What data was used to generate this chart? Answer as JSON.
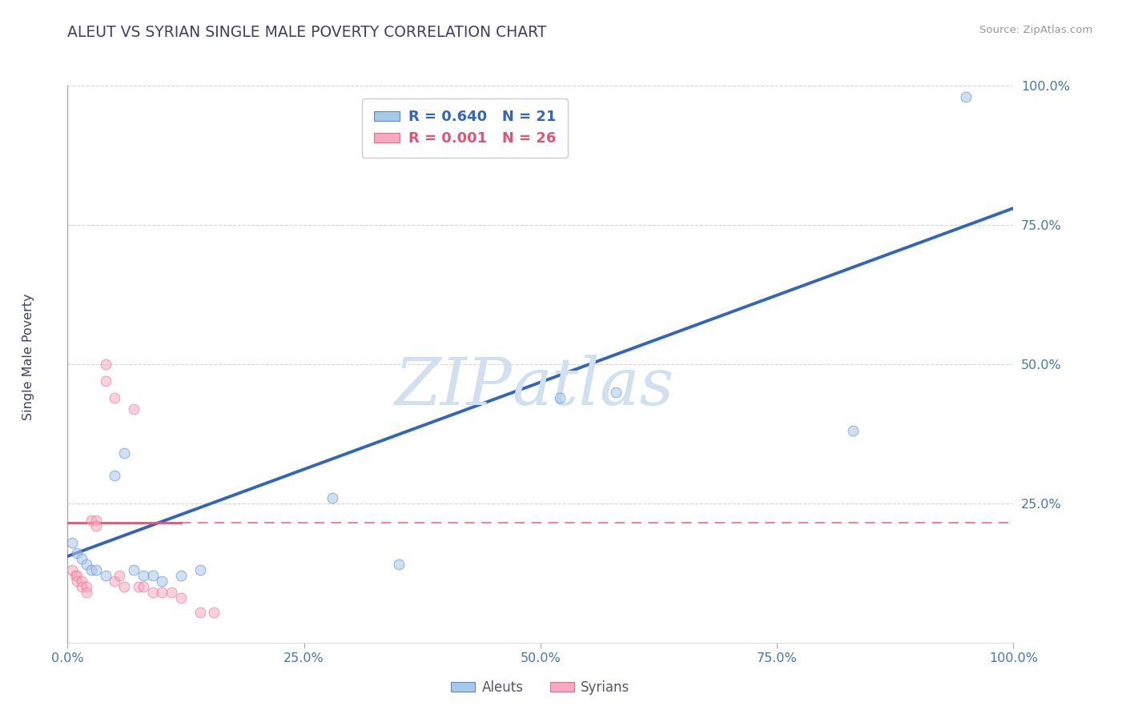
{
  "title": "ALEUT VS SYRIAN SINGLE MALE POVERTY CORRELATION CHART",
  "source": "Source: ZipAtlas.com",
  "ylabel": "Single Male Poverty",
  "xlim": [
    0.0,
    1.0
  ],
  "ylim": [
    0.0,
    1.0
  ],
  "xticks": [
    0.0,
    0.25,
    0.5,
    0.75,
    1.0
  ],
  "yticks": [
    0.25,
    0.5,
    0.75,
    1.0
  ],
  "xticklabels": [
    "0.0%",
    "25.0%",
    "50.0%",
    "75.0%",
    "100.0%"
  ],
  "yticklabels": [
    "25.0%",
    "50.0%",
    "75.0%",
    "100.0%"
  ],
  "legend_r_entries": [
    {
      "label": "R = 0.640   N = 21",
      "color": "#3366bb"
    },
    {
      "label": "R = 0.001   N = 26",
      "color": "#e05575"
    }
  ],
  "aleuts_x": [
    0.005,
    0.01,
    0.015,
    0.02,
    0.025,
    0.03,
    0.04,
    0.05,
    0.06,
    0.07,
    0.08,
    0.09,
    0.1,
    0.12,
    0.14,
    0.28,
    0.35,
    0.52,
    0.58,
    0.83,
    0.95
  ],
  "aleuts_y": [
    0.18,
    0.16,
    0.15,
    0.14,
    0.13,
    0.13,
    0.12,
    0.3,
    0.34,
    0.13,
    0.12,
    0.12,
    0.11,
    0.12,
    0.13,
    0.26,
    0.14,
    0.44,
    0.45,
    0.38,
    0.98
  ],
  "syrians_x": [
    0.005,
    0.008,
    0.01,
    0.01,
    0.015,
    0.015,
    0.02,
    0.02,
    0.025,
    0.03,
    0.03,
    0.04,
    0.04,
    0.05,
    0.05,
    0.055,
    0.06,
    0.07,
    0.075,
    0.08,
    0.09,
    0.1,
    0.11,
    0.12,
    0.14,
    0.155
  ],
  "syrians_y": [
    0.13,
    0.12,
    0.12,
    0.11,
    0.11,
    0.1,
    0.1,
    0.09,
    0.22,
    0.22,
    0.21,
    0.47,
    0.5,
    0.44,
    0.11,
    0.12,
    0.1,
    0.42,
    0.1,
    0.1,
    0.09,
    0.09,
    0.09,
    0.08,
    0.055,
    0.055
  ],
  "aleut_color": "#a8c8e8",
  "syrian_color": "#f8a8c0",
  "aleut_edge_color": "#5588cc",
  "syrian_edge_color": "#e07090",
  "aleut_line_color": "#3366bb",
  "syrian_line_color": "#e05575",
  "aleut_line_x0": 0.0,
  "aleut_line_y0": 0.155,
  "aleut_line_x1": 1.0,
  "aleut_line_y1": 0.78,
  "syrian_line_y": 0.215,
  "grid_color": "#cccccc",
  "title_color": "#404060",
  "tick_color": "#4477aa",
  "background_color": "#ffffff",
  "dot_size": 85,
  "dot_alpha": 0.55,
  "line_width": 2.8,
  "watermark_color": "#d0e0f0"
}
